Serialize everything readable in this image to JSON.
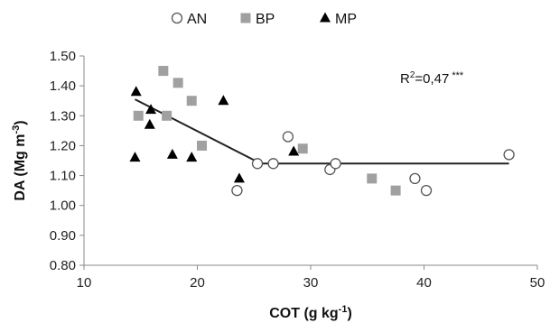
{
  "chart_data": {
    "type": "scatter",
    "xlabel": "COT (g kg",
    "xlabel_sup": "-1",
    "xlabel_end": ")",
    "ylabel": "DA (Mg m",
    "ylabel_sup": "-3",
    "ylabel_end": ")",
    "xlim": [
      10,
      50
    ],
    "ylim": [
      0.8,
      1.5
    ],
    "xticks": [
      10,
      20,
      30,
      40,
      50
    ],
    "yticks": [
      "0.80",
      "0.90",
      "1.00",
      "1.10",
      "1.20",
      "1.30",
      "1.40",
      "1.50"
    ],
    "grid": false,
    "legend_position": "top",
    "annotation": {
      "prefix": "R",
      "sup": "2",
      "value": "=0,47",
      "sig": "***"
    },
    "series": [
      {
        "name": "AN",
        "marker": "circle-open",
        "color": "#555555",
        "points": [
          [
            23.5,
            1.05
          ],
          [
            25.3,
            1.14
          ],
          [
            26.7,
            1.14
          ],
          [
            28.0,
            1.23
          ],
          [
            31.7,
            1.12
          ],
          [
            32.2,
            1.14
          ],
          [
            39.2,
            1.09
          ],
          [
            40.2,
            1.05
          ],
          [
            47.5,
            1.17
          ]
        ]
      },
      {
        "name": "BP",
        "marker": "square",
        "color": "#a0a0a0",
        "points": [
          [
            14.8,
            1.3
          ],
          [
            17.0,
            1.45
          ],
          [
            17.3,
            1.3
          ],
          [
            18.3,
            1.41
          ],
          [
            19.5,
            1.35
          ],
          [
            20.4,
            1.2
          ],
          [
            29.3,
            1.19
          ],
          [
            35.4,
            1.09
          ],
          [
            37.5,
            1.05
          ]
        ]
      },
      {
        "name": "MP",
        "marker": "triangle",
        "color": "#000000",
        "points": [
          [
            14.5,
            1.16
          ],
          [
            14.6,
            1.38
          ],
          [
            15.8,
            1.27
          ],
          [
            15.9,
            1.32
          ],
          [
            17.8,
            1.17
          ],
          [
            19.5,
            1.16
          ],
          [
            22.3,
            1.35
          ],
          [
            23.7,
            1.09
          ],
          [
            28.5,
            1.18
          ]
        ]
      }
    ],
    "fit_line": [
      [
        14.5,
        1.355
      ],
      [
        25.6,
        1.14
      ],
      [
        47.5,
        1.14
      ]
    ]
  }
}
